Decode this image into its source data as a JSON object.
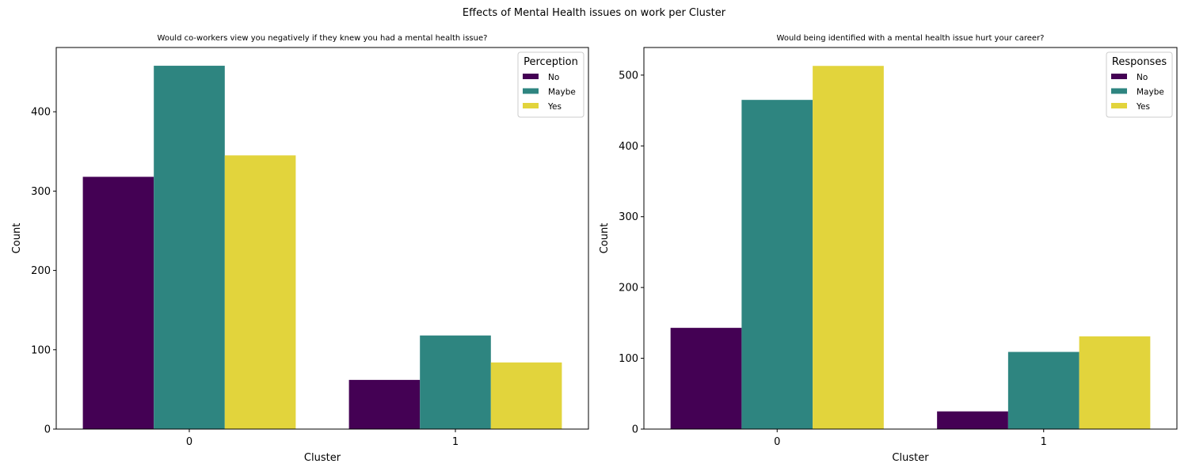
{
  "suptitle": "Effects of Mental Health issues on work per Cluster",
  "colors": {
    "No": "#440154",
    "Maybe": "#2e8580",
    "Yes": "#e2d43c"
  },
  "chart_data": [
    {
      "type": "bar",
      "title": "Would co-workers view you negatively if they knew you had a mental health issue?",
      "xlabel": "Cluster",
      "ylabel": "Count",
      "categories": [
        "0",
        "1"
      ],
      "ylim": [
        0,
        481
      ],
      "yticks": [
        0,
        100,
        200,
        300,
        400
      ],
      "legend_title": "Perception",
      "legend_position": "top-right",
      "series": [
        {
          "name": "No",
          "values": [
            318,
            62
          ]
        },
        {
          "name": "Maybe",
          "values": [
            458,
            118
          ]
        },
        {
          "name": "Yes",
          "values": [
            345,
            84
          ]
        }
      ]
    },
    {
      "type": "bar",
      "title": "Would being identified with a mental health issue hurt your career?",
      "xlabel": "Cluster",
      "ylabel": "Count",
      "categories": [
        "0",
        "1"
      ],
      "ylim": [
        0,
        539
      ],
      "yticks": [
        0,
        100,
        200,
        300,
        400,
        500
      ],
      "legend_title": "Responses",
      "legend_position": "top-right",
      "series": [
        {
          "name": "No",
          "values": [
            143,
            25
          ]
        },
        {
          "name": "Maybe",
          "values": [
            465,
            109
          ]
        },
        {
          "name": "Yes",
          "values": [
            513,
            131
          ]
        }
      ]
    }
  ]
}
